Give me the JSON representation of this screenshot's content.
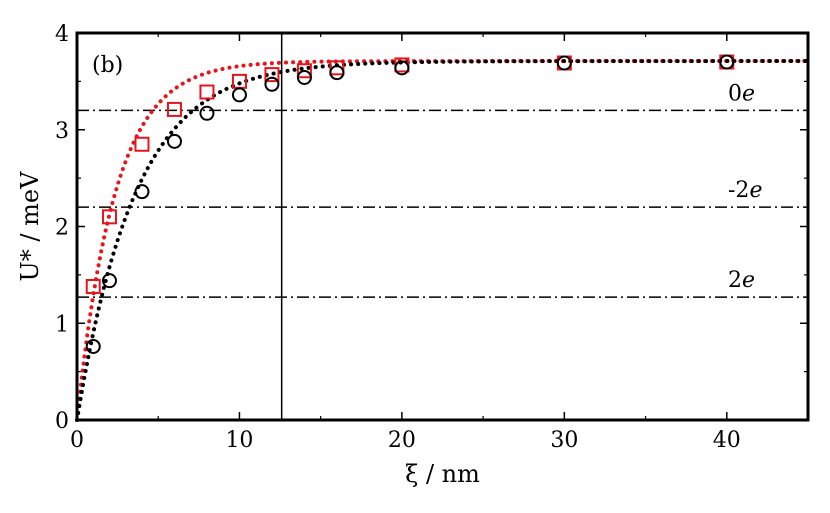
{
  "chart_data": {
    "type": "scatter",
    "panel_label": "(b)",
    "xlabel": "ξ / nm",
    "ylabel": "U* / meV",
    "xlim": [
      0,
      45
    ],
    "ylim": [
      0,
      4
    ],
    "x_ticks": [
      0,
      10,
      20,
      30,
      40
    ],
    "y_ticks": [
      0,
      1,
      2,
      3,
      4
    ],
    "x_tick_labels": [
      "0",
      "10",
      "20",
      "30",
      "40"
    ],
    "y_tick_labels": [
      "0",
      "1",
      "2",
      "3",
      "4"
    ],
    "grid": false,
    "series": [
      {
        "marker": "square",
        "color": "#e8141b",
        "x": [
          1,
          2,
          4,
          6,
          8,
          10,
          12,
          14,
          16,
          20,
          30,
          40
        ],
        "y": [
          1.38,
          2.1,
          2.85,
          3.21,
          3.39,
          3.5,
          3.57,
          3.61,
          3.64,
          3.67,
          3.69,
          3.7
        ],
        "fit": {
          "style": "dotted",
          "A": 3.71,
          "xi0": 2.35,
          "curve": "3.71*(1-exp(-x/2.35))"
        }
      },
      {
        "marker": "circle",
        "color": "#000000",
        "x": [
          1,
          2,
          4,
          6,
          8,
          10,
          12,
          14,
          16,
          20,
          30,
          40
        ],
        "y": [
          0.76,
          1.44,
          2.36,
          2.88,
          3.17,
          3.36,
          3.47,
          3.54,
          3.59,
          3.64,
          3.69,
          3.7
        ],
        "fit": {
          "style": "dotted",
          "A": 3.71,
          "xi0": 3.6,
          "curve": "3.71*(1-exp(-x/3.6))"
        }
      }
    ],
    "reference_lines": [
      {
        "y": 3.2,
        "label": "0",
        "label_italic": "e",
        "style": "dash-dot"
      },
      {
        "y": 2.2,
        "label": "-2",
        "label_italic": "e",
        "style": "dash-dot"
      },
      {
        "y": 1.27,
        "label": "2",
        "label_italic": "e",
        "style": "dash-dot"
      }
    ],
    "vertical_line": {
      "x": 12.6,
      "style": "solid"
    }
  }
}
